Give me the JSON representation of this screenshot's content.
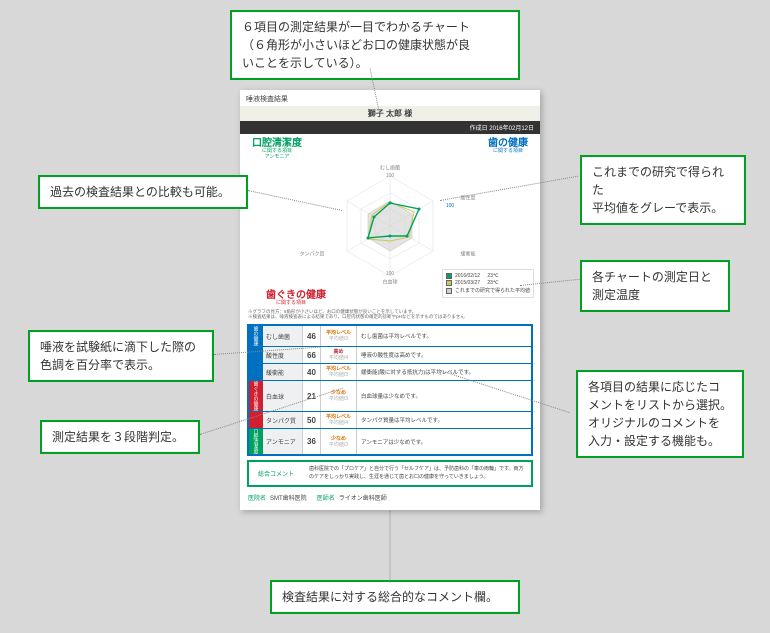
{
  "callouts": {
    "top": [
      "６項目の測定結果が一目でわかるチャート",
      "（６角形が小さいほどお口の健康状態が良",
      "いことを示している）。"
    ],
    "leftTop": [
      "過去の検査結果との比較も可能。"
    ],
    "rightTop": [
      "これまでの研究で得られた",
      "平均値をグレーで表示。"
    ],
    "rightMid": [
      "各チャートの測定日と",
      "測定温度"
    ],
    "leftMid": [
      "唾液を試験紙に滴下した際の",
      "色調を百分率で表示。"
    ],
    "leftLow": [
      "測定結果を３段階判定。"
    ],
    "rightLow": [
      "各項目の結果に応じたコ",
      "メントをリストから選択。",
      "オリジナルのコメントを",
      "入力・設定する機能も。"
    ],
    "bottom": [
      "検査結果に対する総合的なコメント欄。"
    ]
  },
  "doc": {
    "title": "唾液検査結果",
    "patient": "獅子 太郎 様",
    "dateLabel": "作成日",
    "date": "2016年02月12日",
    "headers": {
      "cleanliness": {
        "main": "口腔清潔度",
        "sub": "に関する項目",
        "items": "アンモニア"
      },
      "tooth": {
        "main": "歯の健康",
        "sub": "に関する項目"
      },
      "gum": {
        "main": "歯ぐきの健康",
        "sub": "に関する項目"
      }
    },
    "axes": [
      "むし歯菌",
      "酸性度",
      "緩衝能",
      "白血球",
      "タンパク質",
      "アンモニア"
    ],
    "scaleMax": "100",
    "chart": {
      "series": [
        {
          "date": "2016/02/12",
          "temp": "23℃",
          "color": "#00a060",
          "linewidth": 1.2,
          "values": [
            46,
            66,
            40,
            21,
            50,
            36
          ]
        },
        {
          "date": "2015/03/27",
          "temp": "23℃",
          "color": "#c9c94a",
          "linewidth": 1.0,
          "values": [
            48,
            55,
            45,
            30,
            52,
            42
          ]
        }
      ],
      "avg": {
        "label": "これまでの研究で得られた平均値",
        "color": "#bbbbbb",
        "fill": "#d0d0d0",
        "values": [
          50,
          50,
          50,
          50,
          50,
          50
        ]
      },
      "hex_colors": [
        "#e8e8e8",
        "#d8d8d8",
        "#c8c8c8"
      ]
    },
    "note": [
      "※グラフの見方：6角形が小さいほど、お口の健康状態が良いことを示しています。",
      "※検査結果は、唾液検査表による結果であり、口腔内状態の確定的診断やpHなどを示すものではありません"
    ],
    "rows": [
      {
        "side": "blue",
        "sideLabel": "歯の健康",
        "name": "むし歯菌",
        "val": "46",
        "rank": "平均レベル",
        "rank2": "平均値/3",
        "rankColor": "orange",
        "comment": "むし歯菌は平均レベルです。"
      },
      {
        "side": "blue",
        "name": "酸性度",
        "val": "66",
        "rank": "高め",
        "rank2": "平均値/4",
        "rankColor": "redc",
        "comment": "唾液の酸性度は高めです。"
      },
      {
        "side": "blue",
        "name": "緩衝能",
        "val": "40",
        "rank": "平均レベル",
        "rank2": "平均値/3",
        "rankColor": "orange",
        "comment": "緩衝能(酸に対する抵抗力)は平均レベルです。"
      },
      {
        "side": "red",
        "sideLabel": "歯ぐきの健康",
        "name": "白血球",
        "val": "21",
        "rank": "少なめ",
        "rank2": "平均値/3",
        "rankColor": "orange",
        "comment": "白血球量は少なめです。"
      },
      {
        "side": "red",
        "name": "タンパク質",
        "val": "50",
        "rank": "平均レベル",
        "rank2": "平均値/4",
        "rankColor": "orange",
        "comment": "タンパク質量は平均レベルです。"
      },
      {
        "side": "green",
        "sideLabel": "口腔清潔度",
        "name": "アンモニア",
        "val": "36",
        "rank": "少なめ",
        "rank2": "平均値/3",
        "rankColor": "orange",
        "comment": "アンモニアは少なめです。"
      }
    ],
    "summary": {
      "label": "総合コメント",
      "text": "歯科医院での「プロケア」と自分で行う「セルフケア」は、予防歯科の「車の両輪」です。両方のケアをしっかり実践し、生涯を通じて歯とお口の健康を守っていきましょう。"
    },
    "footer": {
      "instLabel": "医院名",
      "inst": "SMT歯科医院",
      "docLabel": "医師名",
      "docName": "ライオン歯科医師"
    }
  },
  "colors": {
    "calloutBorder": "#00a020",
    "background": "#d8d8d8"
  }
}
